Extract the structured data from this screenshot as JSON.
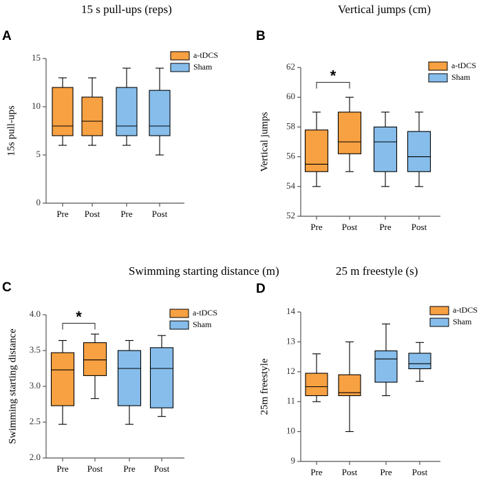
{
  "colors": {
    "atdcs": "#F7A142",
    "sham": "#86BDEB",
    "stroke": "#000000",
    "axis": "#555555"
  },
  "chart_data": [
    {
      "panel": "A",
      "type": "box",
      "title": "15 s pull-ups (reps)",
      "ylabel": "15s pull-ups",
      "xlabel": "",
      "ylim": [
        0,
        15
      ],
      "yticks": [
        "0",
        "5",
        "10",
        "15"
      ],
      "ytick_values": [
        0,
        5,
        10,
        15
      ],
      "categories": [
        "Pre",
        "Post",
        "Pre",
        "Post"
      ],
      "legend": [
        {
          "name": "a-tDCS",
          "color": "#F7A142"
        },
        {
          "name": "Sham",
          "color": "#86BDEB"
        }
      ],
      "legend_position": "top-right",
      "boxes": [
        {
          "group": "a-tDCS",
          "min": 6,
          "q1": 7,
          "median": 8,
          "q3": 12,
          "max": 13
        },
        {
          "group": "a-tDCS",
          "min": 6,
          "q1": 7,
          "median": 8.5,
          "q3": 11,
          "max": 13
        },
        {
          "group": "Sham",
          "min": 6,
          "q1": 7,
          "median": 8,
          "q3": 12,
          "max": 14
        },
        {
          "group": "Sham",
          "min": 5,
          "q1": 7,
          "median": 8,
          "q3": 11.7,
          "max": 14
        }
      ],
      "significance": null
    },
    {
      "panel": "B",
      "type": "box",
      "title": "Vertical jumps (cm)",
      "ylabel": "Vertical jumps",
      "xlabel": "",
      "ylim": [
        52,
        62
      ],
      "yticks": [
        "52",
        "54",
        "56",
        "58",
        "60",
        "62"
      ],
      "ytick_values": [
        52,
        54,
        56,
        58,
        60,
        62
      ],
      "categories": [
        "Pre",
        "Post",
        "Pre",
        "Post"
      ],
      "legend": [
        {
          "name": "a-tDCS",
          "color": "#F7A142"
        },
        {
          "name": "Sham",
          "color": "#86BDEB"
        }
      ],
      "legend_position": "top-right",
      "boxes": [
        {
          "group": "a-tDCS",
          "min": 54,
          "q1": 55,
          "median": 55.5,
          "q3": 57.8,
          "max": 59
        },
        {
          "group": "a-tDCS",
          "min": 55,
          "q1": 56.2,
          "median": 57,
          "q3": 59,
          "max": 60
        },
        {
          "group": "Sham",
          "min": 54,
          "q1": 55,
          "median": 57,
          "q3": 58,
          "max": 59
        },
        {
          "group": "Sham",
          "min": 54,
          "q1": 55,
          "median": 56,
          "q3": 57.7,
          "max": 59
        }
      ],
      "significance": {
        "from": 0,
        "to": 1,
        "value": 61,
        "label": "*"
      }
    },
    {
      "panel": "C",
      "type": "box",
      "title": "Swimming starting distance (m)",
      "ylabel": "Swimming starting distance",
      "xlabel": "",
      "ylim": [
        2.0,
        4.0
      ],
      "yticks": [
        "2.0",
        "2.5",
        "3.0",
        "3.5",
        "4.0"
      ],
      "ytick_values": [
        2.0,
        2.5,
        3.0,
        3.5,
        4.0
      ],
      "categories": [
        "Pre",
        "Post",
        "Pre",
        "Post"
      ],
      "legend": [
        {
          "name": "a-tDCS",
          "color": "#F7A142"
        },
        {
          "name": "Sham",
          "color": "#86BDEB"
        }
      ],
      "legend_position": "top-right",
      "boxes": [
        {
          "group": "a-tDCS",
          "min": 2.47,
          "q1": 2.73,
          "median": 3.23,
          "q3": 3.47,
          "max": 3.64
        },
        {
          "group": "a-tDCS",
          "min": 2.83,
          "q1": 3.15,
          "median": 3.37,
          "q3": 3.61,
          "max": 3.73
        },
        {
          "group": "Sham",
          "min": 2.47,
          "q1": 2.73,
          "median": 3.25,
          "q3": 3.5,
          "max": 3.64
        },
        {
          "group": "Sham",
          "min": 2.58,
          "q1": 2.7,
          "median": 3.25,
          "q3": 3.54,
          "max": 3.71
        }
      ],
      "significance": {
        "from": 0,
        "to": 1,
        "value": 3.88,
        "label": "*"
      }
    },
    {
      "panel": "D",
      "type": "box",
      "title": "25 m freestyle (s)",
      "ylabel": "25m freestyle",
      "xlabel": "",
      "ylim": [
        9,
        14
      ],
      "yticks": [
        "9",
        "10",
        "11",
        "12",
        "13",
        "14"
      ],
      "ytick_values": [
        9,
        10,
        11,
        12,
        13,
        14
      ],
      "categories": [
        "Pre",
        "Post",
        "Pre",
        "Post"
      ],
      "legend": [
        {
          "name": "a-tDCS",
          "color": "#F7A142"
        },
        {
          "name": "Sham",
          "color": "#86BDEB"
        }
      ],
      "legend_position": "top-right",
      "boxes": [
        {
          "group": "a-tDCS",
          "min": 11.0,
          "q1": 11.2,
          "median": 11.5,
          "q3": 11.95,
          "max": 12.6
        },
        {
          "group": "a-tDCS",
          "min": 10.0,
          "q1": 11.2,
          "median": 11.3,
          "q3": 11.9,
          "max": 13.0
        },
        {
          "group": "Sham",
          "min": 11.2,
          "q1": 11.65,
          "median": 12.43,
          "q3": 12.7,
          "max": 13.6
        },
        {
          "group": "Sham",
          "min": 11.68,
          "q1": 12.1,
          "median": 12.27,
          "q3": 12.62,
          "max": 12.98
        }
      ],
      "significance": null
    }
  ]
}
